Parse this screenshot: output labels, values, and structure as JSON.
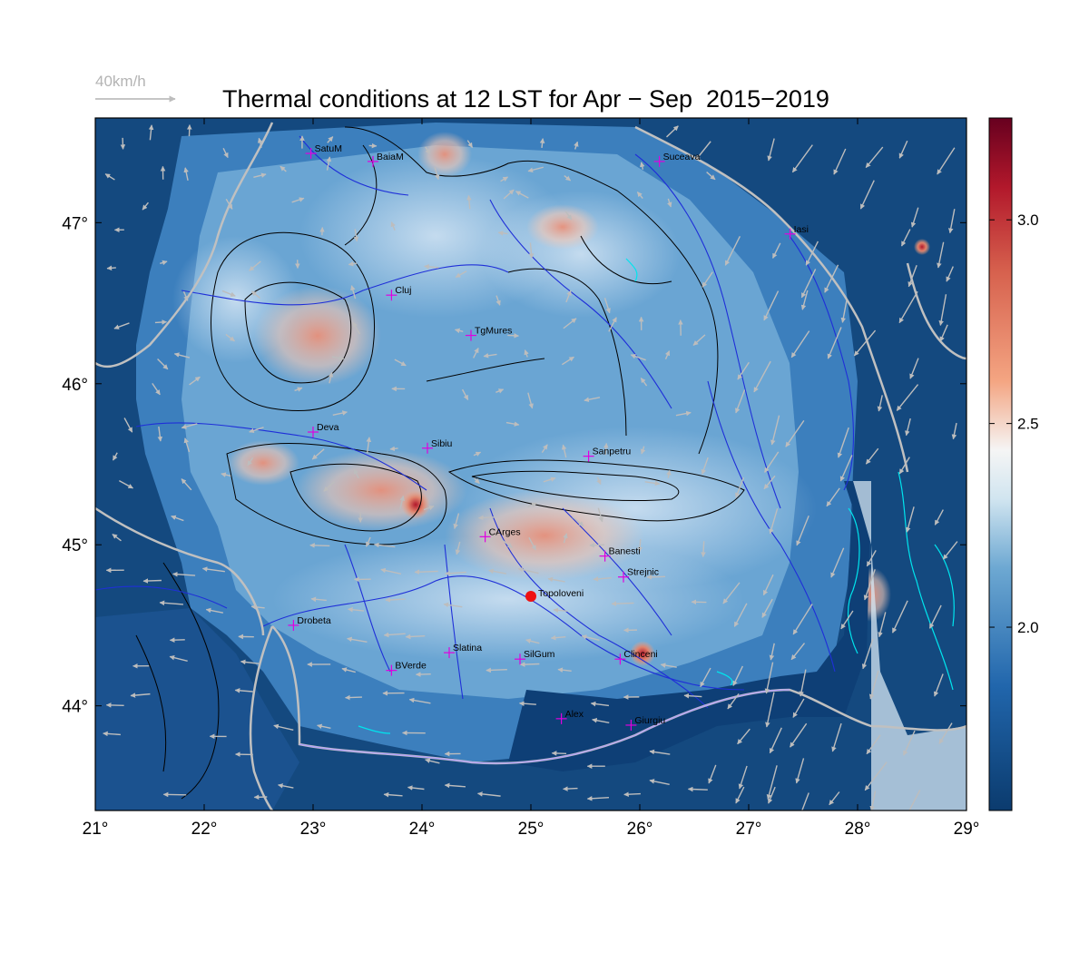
{
  "title": "Thermal conditions at 12 LST for Apr − Sep  2015−2019",
  "scale_arrow": {
    "label": "40km/h",
    "speed_kmh": 40
  },
  "map": {
    "lon_range": [
      21,
      29
    ],
    "lat_range": [
      43.35,
      47.65
    ],
    "x_ticks": [
      {
        "value": 21,
        "label": "21°"
      },
      {
        "value": 22,
        "label": "22°"
      },
      {
        "value": 23,
        "label": "23°"
      },
      {
        "value": 24,
        "label": "24°"
      },
      {
        "value": 25,
        "label": "25°"
      },
      {
        "value": 26,
        "label": "26°"
      },
      {
        "value": 27,
        "label": "27°"
      },
      {
        "value": 28,
        "label": "28°"
      },
      {
        "value": 29,
        "label": "29°"
      }
    ],
    "y_ticks": [
      {
        "value": 44,
        "label": "44°"
      },
      {
        "value": 45,
        "label": "45°"
      },
      {
        "value": 46,
        "label": "46°"
      },
      {
        "value": 47,
        "label": "47°"
      }
    ],
    "colors": {
      "low": "#0b3b6e",
      "mid": "#f3f3f3",
      "high": "#67001f",
      "rivers": "#1f2fd8",
      "contours": "#000000",
      "borders": "#c0c0c0",
      "cities": "#e000e0",
      "location": "#ee1111",
      "lakes": "#00e5ee",
      "wind": "#bdbdbd"
    },
    "cities": [
      {
        "name": "SatuM",
        "lon": 22.98,
        "lat": 47.43
      },
      {
        "name": "BaiaM",
        "lon": 23.55,
        "lat": 47.38
      },
      {
        "name": "Suceava",
        "lon": 26.18,
        "lat": 47.38
      },
      {
        "name": "Iasi",
        "lon": 27.38,
        "lat": 46.93
      },
      {
        "name": "Cluj",
        "lon": 23.72,
        "lat": 46.55
      },
      {
        "name": "TgMures",
        "lon": 24.45,
        "lat": 46.3
      },
      {
        "name": "Deva",
        "lon": 23.0,
        "lat": 45.7
      },
      {
        "name": "Sibiu",
        "lon": 24.05,
        "lat": 45.6
      },
      {
        "name": "Sanpetru",
        "lon": 25.53,
        "lat": 45.55
      },
      {
        "name": "CArges",
        "lon": 24.58,
        "lat": 45.05
      },
      {
        "name": "Banesti",
        "lon": 25.68,
        "lat": 44.93
      },
      {
        "name": "Strejnic",
        "lon": 25.85,
        "lat": 44.8
      },
      {
        "name": "Drobeta",
        "lon": 22.82,
        "lat": 44.5
      },
      {
        "name": "Slatina",
        "lon": 24.25,
        "lat": 44.33
      },
      {
        "name": "SilGum",
        "lon": 24.9,
        "lat": 44.29
      },
      {
        "name": "Clinceni",
        "lon": 25.82,
        "lat": 44.29
      },
      {
        "name": "BVerde",
        "lon": 23.72,
        "lat": 44.22
      },
      {
        "name": "Alex",
        "lon": 25.28,
        "lat": 43.92
      },
      {
        "name": "Giurgiu",
        "lon": 25.92,
        "lat": 43.88
      }
    ],
    "location": {
      "name": "Topoloveni",
      "lon": 25.0,
      "lat": 44.68
    }
  },
  "colorbar": {
    "range": [
      1.55,
      3.25
    ],
    "ticks": [
      {
        "value": 2.0,
        "label": "2.0"
      },
      {
        "value": 2.5,
        "label": "2.5"
      },
      {
        "value": 3.0,
        "label": "3.0"
      }
    ]
  }
}
